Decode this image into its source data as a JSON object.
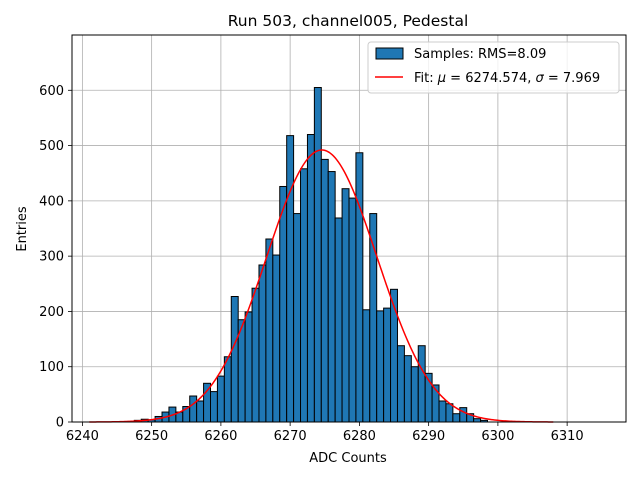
{
  "chart_data": {
    "type": "bar",
    "title": "Run 503, channel005, Pedestal",
    "xlabel": "ADC Counts",
    "ylabel": "Entries",
    "xlim": [
      6238.5,
      6318.5
    ],
    "ylim": [
      0,
      700
    ],
    "xticks": [
      6240,
      6250,
      6260,
      6270,
      6280,
      6290,
      6300,
      6310
    ],
    "yticks": [
      0,
      100,
      200,
      300,
      400,
      500,
      600
    ],
    "grid": true,
    "legend_position": "top-right",
    "colors": {
      "bar_fill": "#1f77b4",
      "bar_edge": "#000000",
      "fit_line": "#ff0000",
      "grid": "#b0b0b0"
    },
    "series": [
      {
        "name": "Samples: RMS=8.09",
        "type": "histogram",
        "bin_width": 1,
        "bins": [
          {
            "x": 6248,
            "count": 3
          },
          {
            "x": 6249,
            "count": 5
          },
          {
            "x": 6250,
            "count": 4
          },
          {
            "x": 6251,
            "count": 10
          },
          {
            "x": 6252,
            "count": 18
          },
          {
            "x": 6253,
            "count": 27
          },
          {
            "x": 6254,
            "count": 18
          },
          {
            "x": 6255,
            "count": 28
          },
          {
            "x": 6256,
            "count": 47
          },
          {
            "x": 6257,
            "count": 38
          },
          {
            "x": 6258,
            "count": 70
          },
          {
            "x": 6259,
            "count": 55
          },
          {
            "x": 6260,
            "count": 83
          },
          {
            "x": 6261,
            "count": 118
          },
          {
            "x": 6262,
            "count": 227
          },
          {
            "x": 6263,
            "count": 185
          },
          {
            "x": 6264,
            "count": 199
          },
          {
            "x": 6265,
            "count": 242
          },
          {
            "x": 6266,
            "count": 284
          },
          {
            "x": 6267,
            "count": 331
          },
          {
            "x": 6268,
            "count": 302
          },
          {
            "x": 6269,
            "count": 426
          },
          {
            "x": 6270,
            "count": 518
          },
          {
            "x": 6271,
            "count": 377
          },
          {
            "x": 6272,
            "count": 458
          },
          {
            "x": 6273,
            "count": 520
          },
          {
            "x": 6274,
            "count": 605
          },
          {
            "x": 6275,
            "count": 475
          },
          {
            "x": 6276,
            "count": 453
          },
          {
            "x": 6277,
            "count": 369
          },
          {
            "x": 6278,
            "count": 422
          },
          {
            "x": 6279,
            "count": 405
          },
          {
            "x": 6280,
            "count": 487
          },
          {
            "x": 6281,
            "count": 203
          },
          {
            "x": 6282,
            "count": 377
          },
          {
            "x": 6283,
            "count": 201
          },
          {
            "x": 6284,
            "count": 206
          },
          {
            "x": 6285,
            "count": 240
          },
          {
            "x": 6286,
            "count": 138
          },
          {
            "x": 6287,
            "count": 120
          },
          {
            "x": 6288,
            "count": 100
          },
          {
            "x": 6289,
            "count": 138
          },
          {
            "x": 6290,
            "count": 88
          },
          {
            "x": 6291,
            "count": 67
          },
          {
            "x": 6292,
            "count": 38
          },
          {
            "x": 6293,
            "count": 33
          },
          {
            "x": 6294,
            "count": 15
          },
          {
            "x": 6295,
            "count": 26
          },
          {
            "x": 6296,
            "count": 15
          },
          {
            "x": 6297,
            "count": 6
          },
          {
            "x": 6298,
            "count": 3
          }
        ]
      },
      {
        "name": "Fit: μ = 6274.574, σ = 7.969",
        "type": "gaussian_fit",
        "mu": 6274.574,
        "sigma": 7.969,
        "amplitude": 492,
        "x_range": [
          6241,
          6308
        ]
      }
    ],
    "legend": {
      "samples_label": "Samples: RMS=8.09",
      "fit_prefix": "Fit: ",
      "mu_symbol": "μ",
      "mu_text": " = 6274.574, ",
      "sigma_symbol": "σ",
      "sigma_text": " = 7.969"
    }
  }
}
